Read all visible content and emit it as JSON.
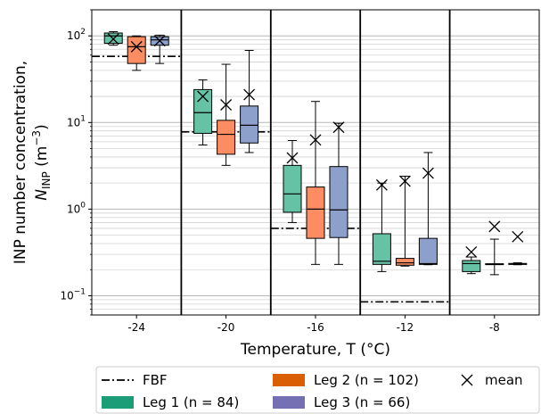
{
  "chart_data": {
    "type": "box",
    "y_scale": "log",
    "ylim": [
      0.06,
      200
    ],
    "grid": {
      "y_major": true,
      "y_minor": true,
      "x": false
    },
    "ylabel_line1": "INP number concentration,",
    "ylabel_line2_prefix": "N",
    "ylabel_line2_sub": "INP",
    "ylabel_line2_suffix": " (m",
    "ylabel_line2_sup": "−3",
    "ylabel_line2_end": ")",
    "xlabel": "Temperature, T (°C)",
    "y_ticks": [
      {
        "value": 0.1,
        "base": "10",
        "exp": "−1"
      },
      {
        "value": 1,
        "base": "10",
        "exp": "0"
      },
      {
        "value": 10,
        "base": "10",
        "exp": "1"
      },
      {
        "value": 100,
        "base": "10",
        "exp": "2"
      }
    ],
    "categories": [
      "-24",
      "-20",
      "-16",
      "-12",
      "-8"
    ],
    "fbf": [
      58,
      7.8,
      0.6,
      0.085,
      null
    ],
    "series": [
      {
        "name": "Leg 1 (n = 84)",
        "legend_label": "Leg 1 (n = 84)",
        "color": "#66c2a5",
        "legend_color": "#1b9e77",
        "boxes": [
          {
            "whislo": 78,
            "q1": 82,
            "med": 100,
            "q3": 108,
            "whishi": 112,
            "mean": 92
          },
          {
            "whislo": 5.5,
            "q1": 7.5,
            "med": 13,
            "q3": 24,
            "whishi": 31,
            "mean": 20
          },
          {
            "whislo": 0.7,
            "q1": 0.92,
            "med": 1.5,
            "q3": 3.2,
            "whishi": 6.2,
            "mean": 3.9
          },
          {
            "whislo": 0.19,
            "q1": 0.23,
            "med": 0.25,
            "q3": 0.52,
            "whishi": 2.0,
            "mean": 1.9
          },
          {
            "whislo": 0.18,
            "q1": 0.19,
            "med": 0.235,
            "q3": 0.255,
            "whishi": 0.28,
            "mean": 0.32
          }
        ]
      },
      {
        "name": "Leg 2 (n = 102)",
        "legend_label": "Leg 2 (n = 102)",
        "color": "#fc8d62",
        "legend_color": "#d95f02",
        "boxes": [
          {
            "whislo": 40,
            "q1": 48,
            "med": 75,
            "q3": 98,
            "whishi": 100,
            "mean": 75
          },
          {
            "whislo": 3.2,
            "q1": 4.3,
            "med": 7.3,
            "q3": 10.6,
            "whishi": 47,
            "mean": 16
          },
          {
            "whislo": 0.23,
            "q1": 0.46,
            "med": 1.0,
            "q3": 1.8,
            "whishi": 17.5,
            "mean": 6.3
          },
          {
            "whislo": 0.22,
            "q1": 0.225,
            "med": 0.24,
            "q3": 0.27,
            "whishi": 2.4,
            "mean": 2.1
          },
          {
            "whislo": 0.175,
            "q1": 0.23,
            "med": 0.232,
            "q3": 0.234,
            "whishi": 0.45,
            "mean": 0.63
          }
        ]
      },
      {
        "name": "Leg 3 (n = 66)",
        "legend_label": "Leg 3 (n = 66)",
        "color": "#8da0cb",
        "legend_color": "#7570b3",
        "boxes": [
          {
            "whislo": 48,
            "q1": 78,
            "med": 90,
            "q3": 98,
            "whishi": 102,
            "mean": 88
          },
          {
            "whislo": 4.5,
            "q1": 5.8,
            "med": 9.3,
            "q3": 15.5,
            "whishi": 68,
            "mean": 21
          },
          {
            "whislo": 0.23,
            "q1": 0.47,
            "med": 0.98,
            "q3": 3.1,
            "whishi": 9.8,
            "mean": 8.8
          },
          {
            "whislo": 0.228,
            "q1": 0.23,
            "med": 0.235,
            "q3": 0.46,
            "whishi": 4.5,
            "mean": 2.6
          },
          {
            "whislo": 0.228,
            "q1": 0.23,
            "med": 0.232,
            "q3": 0.236,
            "whishi": 0.24,
            "mean": 0.48
          }
        ]
      }
    ],
    "legend": {
      "placement": "bottom",
      "entries": [
        {
          "kind": "line",
          "label": "FBF"
        },
        {
          "kind": "patch",
          "series": 0
        },
        {
          "kind": "patch",
          "series": 1
        },
        {
          "kind": "patch",
          "series": 2
        },
        {
          "kind": "marker",
          "label": "mean"
        }
      ]
    }
  }
}
